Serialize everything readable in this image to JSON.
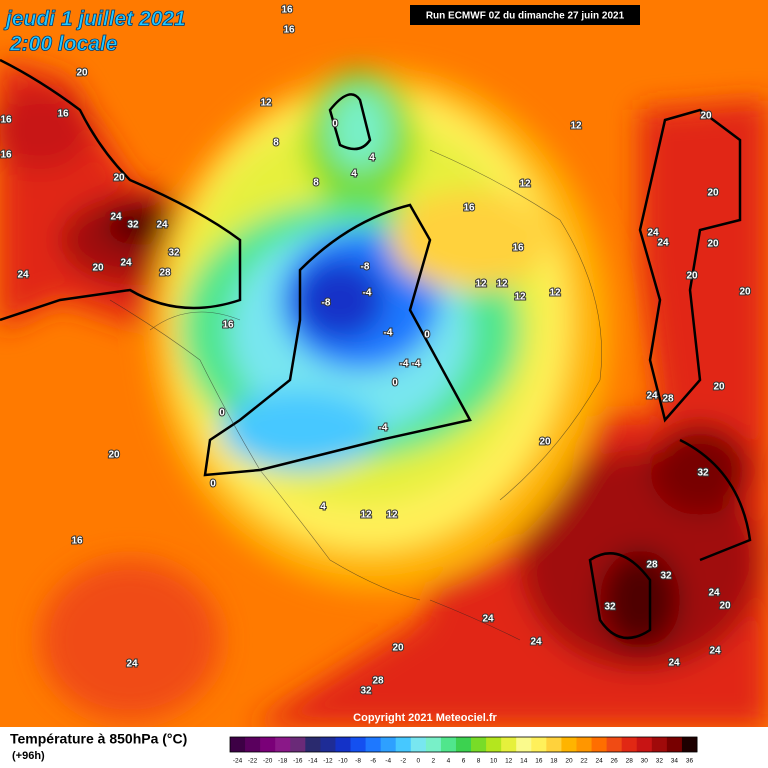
{
  "header": {
    "date": "jeudi 1 juillet 2021",
    "time": "2:00 locale",
    "run": "Run ECMWF 0Z du dimanche 27 juin 2021"
  },
  "copyright": "Copyright 2021 Meteociel.fr",
  "footer": {
    "title": "Température à 850hPa (°C)",
    "lead": "(+96h)"
  },
  "colorbar": {
    "ticks": [
      -24,
      -22,
      -20,
      -18,
      -16,
      -14,
      -12,
      -10,
      -8,
      -6,
      -4,
      -2,
      0,
      2,
      4,
      6,
      8,
      10,
      12,
      14,
      16,
      18,
      20,
      22,
      24,
      26,
      28,
      30,
      32,
      34,
      36
    ],
    "colors": [
      "#3d0045",
      "#5a005e",
      "#7a0078",
      "#8a1888",
      "#6a2a78",
      "#2a2a6e",
      "#1e2c96",
      "#1432c8",
      "#1450f0",
      "#1e78ff",
      "#2ea0ff",
      "#46c8ff",
      "#78e6f0",
      "#78f0c8",
      "#50e68c",
      "#3cd250",
      "#78dc28",
      "#b4e61e",
      "#e6f03c",
      "#fafa8c",
      "#fff05a",
      "#ffd23c",
      "#ffb400",
      "#ff9600",
      "#ff6e00",
      "#f04b14",
      "#e12814",
      "#c81414",
      "#a00a0a",
      "#780000",
      "#1e0000"
    ]
  },
  "map": {
    "labels": [
      16,
      16,
      20,
      16,
      16,
      16,
      12,
      0,
      8,
      4,
      4,
      8,
      20,
      24,
      32,
      24,
      32,
      24,
      20,
      28,
      24,
      16,
      12,
      12,
      16,
      16,
      12,
      12,
      12,
      12,
      20,
      20,
      24,
      24,
      20,
      20,
      20,
      -8,
      -4,
      -8,
      -4,
      0,
      -4,
      -4,
      0,
      -4,
      0,
      0,
      20,
      4,
      12,
      12,
      20,
      24,
      28,
      20,
      32,
      16,
      24,
      28,
      32,
      32,
      24,
      20,
      24,
      24,
      20,
      24,
      24,
      28,
      32
    ]
  }
}
